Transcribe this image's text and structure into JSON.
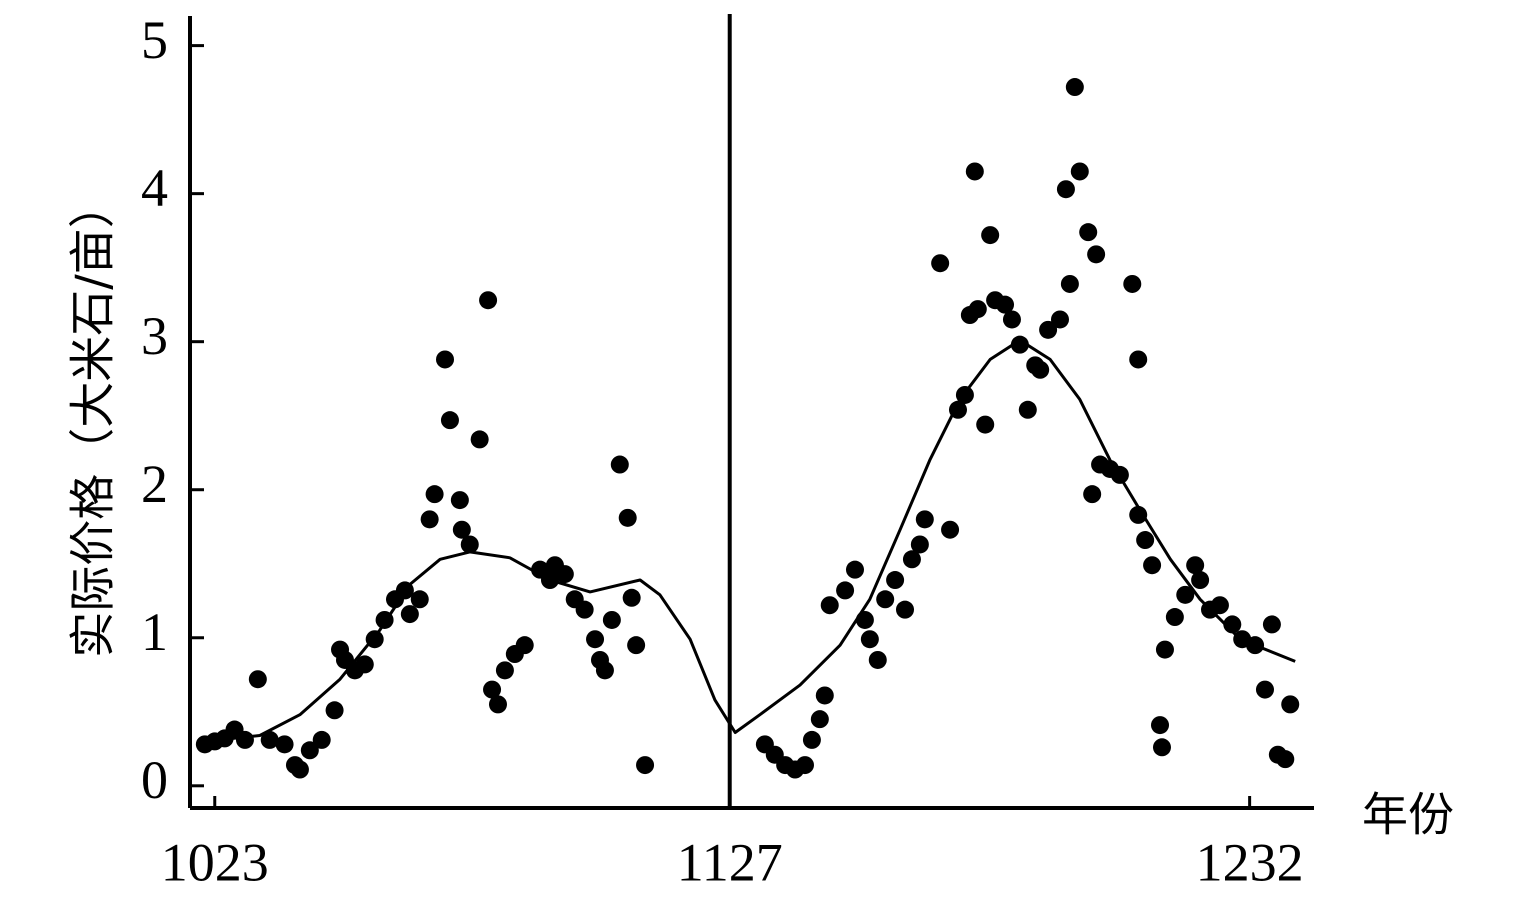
{
  "chart_data": {
    "type": "scatter",
    "y_label": "实际价格（大米石/亩）",
    "x_label": "年份",
    "xlim": [
      1018,
      1245
    ],
    "ylim": [
      -0.15,
      5.2
    ],
    "xticks": [
      1023,
      1127,
      1232
    ],
    "yticks": [
      0,
      1,
      2,
      3,
      4,
      5
    ],
    "vlines": [
      1127
    ],
    "series": [
      {
        "type": "scatter",
        "color": "#000000",
        "x": [
          1021.0,
          1023,
          1025.0,
          1027.0,
          1029.1,
          1031.7,
          1034.1,
          1037.1,
          1039.2,
          1040.2,
          1042.2,
          1044.6,
          1047.2,
          1048.3,
          1049.3,
          1051.3,
          1053.3,
          1055.3,
          1057.3,
          1059.4,
          1061.4,
          1062.4,
          1064.4,
          1066.4,
          1067.4,
          1069.5,
          1070.5,
          1072.5,
          1072.9,
          1074.5,
          1076.5,
          1078.2,
          1079.0,
          1080.2,
          1081.6,
          1083.6,
          1085.6,
          1088.7,
          1090.7,
          1091.7,
          1093.7,
          1095.7,
          1097.7,
          1099.8,
          1100.8,
          1101.8,
          1103.2,
          1104.8,
          1106.4,
          1107.2,
          1108.1,
          1109.9,
          1134.1,
          1136.1,
          1138.2,
          1140.2,
          1142.2,
          1143.6,
          1145.2,
          1146.2,
          1147.2,
          1150.3,
          1152.3,
          1154.3,
          1155.3,
          1156.9,
          1158.4,
          1160.4,
          1162.4,
          1163.8,
          1165.4,
          1166.4,
          1169.5,
          1171.5,
          1173.1,
          1174.5,
          1175.5,
          1176.5,
          1177.1,
          1178.6,
          1179.6,
          1180.6,
          1182.6,
          1184.0,
          1185.6,
          1187.2,
          1188.7,
          1189.7,
          1191.3,
          1193.7,
          1194.9,
          1195.7,
          1196.7,
          1197.7,
          1199.4,
          1200.2,
          1201.0,
          1201.8,
          1203.8,
          1205.8,
          1208.3,
          1209.5,
          1209.5,
          1210.9,
          1212.3,
          1213.9,
          1214.3,
          1214.9,
          1216.9,
          1219.0,
          1221.0,
          1222.0,
          1224.0,
          1226.0,
          1228.5,
          1230.5,
          1233.1,
          1235.1,
          1236.5,
          1237.7,
          1239.2,
          1240.2
        ],
        "values": [
          0.28,
          0.3,
          0.32,
          0.38,
          0.31,
          0.72,
          0.31,
          0.28,
          0.14,
          0.11,
          0.24,
          0.31,
          0.51,
          0.92,
          0.85,
          0.78,
          0.82,
          0.99,
          1.12,
          1.26,
          1.32,
          1.16,
          1.26,
          1.8,
          1.97,
          2.88,
          2.47,
          1.93,
          1.73,
          1.63,
          2.34,
          3.28,
          0.65,
          0.55,
          0.78,
          0.89,
          0.95,
          1.46,
          1.39,
          1.49,
          1.43,
          1.26,
          1.19,
          0.99,
          0.85,
          0.78,
          1.12,
          2.17,
          1.81,
          1.27,
          0.95,
          0.14,
          0.28,
          0.21,
          0.14,
          0.11,
          0.14,
          0.31,
          0.45,
          0.61,
          1.22,
          1.32,
          1.46,
          1.12,
          0.99,
          0.85,
          1.26,
          1.39,
          1.19,
          1.53,
          1.63,
          1.8,
          3.53,
          1.73,
          2.54,
          2.64,
          3.18,
          4.15,
          3.22,
          2.44,
          3.72,
          3.28,
          3.25,
          3.15,
          2.98,
          2.54,
          2.84,
          2.81,
          3.08,
          3.15,
          4.03,
          3.39,
          4.72,
          4.15,
          3.74,
          1.97,
          3.59,
          2.17,
          2.14,
          2.1,
          3.39,
          2.88,
          1.83,
          1.66,
          1.49,
          0.41,
          0.26,
          0.92,
          1.14,
          1.29,
          1.49,
          1.39,
          1.19,
          1.22,
          1.09,
          0.99,
          0.95,
          0.65,
          1.09,
          0.21,
          0.18,
          0.55
        ]
      },
      {
        "type": "line",
        "color": "#000000",
        "x": [
          1021.0,
          1032.1,
          1040.2,
          1048.3,
          1056.3,
          1062.4,
          1068.5,
          1074.5,
          1082.6,
          1090.7,
          1098.8,
          1108.9,
          1112.9,
          1119.0,
          1124.0,
          1128.1,
          1133.1,
          1141.2,
          1149.3,
          1155.3,
          1161.4,
          1167.4,
          1173.5,
          1179.6,
          1185.6,
          1191.7,
          1197.7,
          1203.8,
          1209.9,
          1216.0,
          1222.0,
          1230.1,
          1241.2
        ],
        "values": [
          0.3,
          0.34,
          0.48,
          0.72,
          1.05,
          1.36,
          1.53,
          1.58,
          1.54,
          1.39,
          1.31,
          1.39,
          1.29,
          0.99,
          0.58,
          0.36,
          0.48,
          0.68,
          0.95,
          1.26,
          1.73,
          2.2,
          2.61,
          2.88,
          3.01,
          2.88,
          2.61,
          2.2,
          1.86,
          1.53,
          1.26,
          0.99,
          0.84
        ]
      }
    ]
  }
}
